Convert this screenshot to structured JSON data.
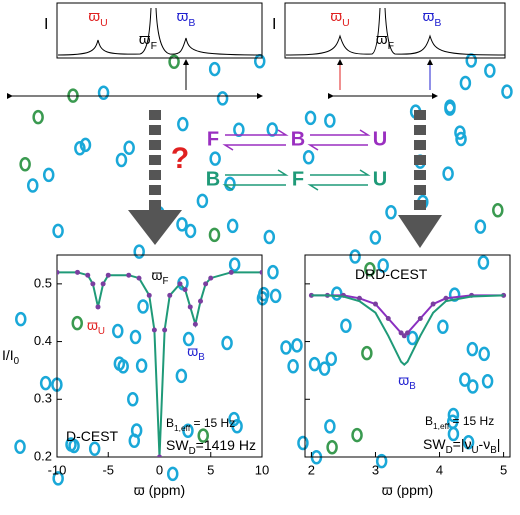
{
  "diagram": {
    "left_spectrum": {
      "ylabel": "I",
      "peaks": [
        [
          "ϖ",
          "U"
        ],
        [
          "ϖ",
          "F"
        ],
        [
          "ϖ",
          "B"
        ]
      ]
    },
    "right_spectrum": {
      "ylabel": "I",
      "peaks": [
        [
          "ϖ",
          "U"
        ],
        [
          "ϖ",
          "F"
        ],
        [
          "ϖ",
          "B"
        ]
      ]
    },
    "question": "?",
    "scheme1": [
      "F",
      "B",
      "U"
    ],
    "scheme2": [
      "B",
      "F",
      "U"
    ]
  },
  "chart_data": [
    {
      "type": "line",
      "xlabel": [
        "ϖ (ppm)"
      ],
      "ylabel": [
        "I/I",
        "0"
      ],
      "xlim": [
        -10,
        10
      ],
      "ylim": [
        0.2,
        0.55
      ],
      "xticks": [
        -10,
        -5,
        0,
        5,
        10
      ],
      "yticks": [
        0.2,
        0.3,
        0.4,
        0.5
      ],
      "ytick_labels": true,
      "x": [
        -10,
        -8,
        -7,
        -6.5,
        -6,
        -5.5,
        -5,
        -3,
        -2,
        -1,
        -0.5,
        0,
        0.5,
        1,
        2,
        2.5,
        3,
        3.5,
        4,
        4.5,
        5,
        7,
        10
      ],
      "series": [
        {
          "color": "#1f9a78",
          "marker_color": "#7a3fa0",
          "marker": true,
          "values": [
            0.52,
            0.52,
            0.515,
            0.5,
            0.46,
            0.5,
            0.515,
            0.515,
            0.51,
            0.48,
            0.42,
            0.2,
            0.42,
            0.48,
            0.5,
            0.49,
            0.46,
            0.43,
            0.47,
            0.5,
            0.51,
            0.52,
            0.52
          ]
        }
      ],
      "annotations": [
        {
          "text": [
            "ϖ",
            "F"
          ],
          "color": "#000000"
        },
        {
          "text": [
            "ϖ",
            "U"
          ],
          "color": "#e02020"
        },
        {
          "text": [
            "ϖ",
            "B"
          ],
          "color": "#2020d0"
        },
        {
          "text": [
            "D-CEST"
          ],
          "color": "#000000"
        },
        {
          "text": [
            "B",
            "1,eff",
            " = 15 Hz"
          ],
          "color": "#000000"
        },
        {
          "text": [
            "SW",
            "D",
            "=1419 Hz"
          ],
          "color": "#000000"
        }
      ]
    },
    {
      "type": "line",
      "xlabel": [
        "ϖ (ppm)"
      ],
      "xlim": [
        1.9,
        5.1
      ],
      "ylim": [
        0.2,
        0.55
      ],
      "xticks": [
        2,
        3,
        4,
        5
      ],
      "yticks": [
        0.2,
        0.3,
        0.4,
        0.5
      ],
      "ytick_labels": false,
      "x": [
        2,
        2.25,
        2.5,
        2.75,
        3,
        3.2,
        3.4,
        3.45,
        3.5,
        3.7,
        3.9,
        4.1,
        4.5,
        5
      ],
      "series": [
        {
          "color": "#8a2fc0",
          "marker_color": "#7a3fa0",
          "marker": true,
          "values": [
            0.48,
            0.48,
            0.48,
            0.475,
            0.465,
            0.44,
            0.415,
            0.41,
            0.415,
            0.44,
            0.465,
            0.475,
            0.48,
            0.48
          ]
        },
        {
          "color": "#1f9a78",
          "marker": false,
          "values": [
            0.48,
            0.48,
            0.478,
            0.47,
            0.45,
            0.41,
            0.365,
            0.36,
            0.365,
            0.41,
            0.45,
            0.47,
            0.478,
            0.48
          ]
        }
      ],
      "annotations": [
        {
          "text": [
            "DRD-CEST"
          ],
          "color": "#000000"
        },
        {
          "text": [
            "ϖ",
            "B"
          ],
          "color": "#2020d0"
        },
        {
          "text": [
            "B",
            "1,eff",
            " = 15 Hz"
          ],
          "color": "#000000"
        },
        {
          "text": [
            "SW",
            "D",
            "=|ν",
            "U",
            "-ν",
            "B",
            "|"
          ],
          "color": "#000000"
        }
      ]
    }
  ]
}
